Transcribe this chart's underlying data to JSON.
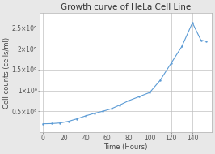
{
  "title": "Growth curve of HeLa Cell Line",
  "xlabel": "Time (Hours)",
  "ylabel": "Cell counts (cells/ml)",
  "x": [
    0,
    8,
    16,
    24,
    32,
    40,
    48,
    56,
    64,
    72,
    80,
    90,
    100,
    110,
    120,
    130,
    140,
    148,
    153
  ],
  "y": [
    200000.0,
    205000.0,
    220000.0,
    260000.0,
    320000.0,
    390000.0,
    450000.0,
    500000.0,
    560000.0,
    650000.0,
    750000.0,
    850000.0,
    950000.0,
    1250000.0,
    1650000.0,
    2050000.0,
    2620000.0,
    2200000.0,
    2180000.0
  ],
  "line_color": "#5b9bd5",
  "bg_color": "#e8e8e8",
  "plot_bg_color": "#ffffff",
  "grid_color": "#c0c0c0",
  "xticks": [
    0,
    20,
    40,
    60,
    80,
    100,
    120,
    140
  ],
  "ytick_vals": [
    500000,
    1000000,
    1500000,
    2000000,
    2500000
  ],
  "ytick_labels": [
    "0.5×10⁶",
    "1×10⁶",
    "1.5×10⁶",
    "2×10⁶",
    "2.5×10⁶"
  ],
  "xlim": [
    -3,
    158
  ],
  "ylim": [
    0,
    2850000.0
  ],
  "title_fontsize": 7.5,
  "label_fontsize": 6,
  "tick_fontsize": 5.5
}
